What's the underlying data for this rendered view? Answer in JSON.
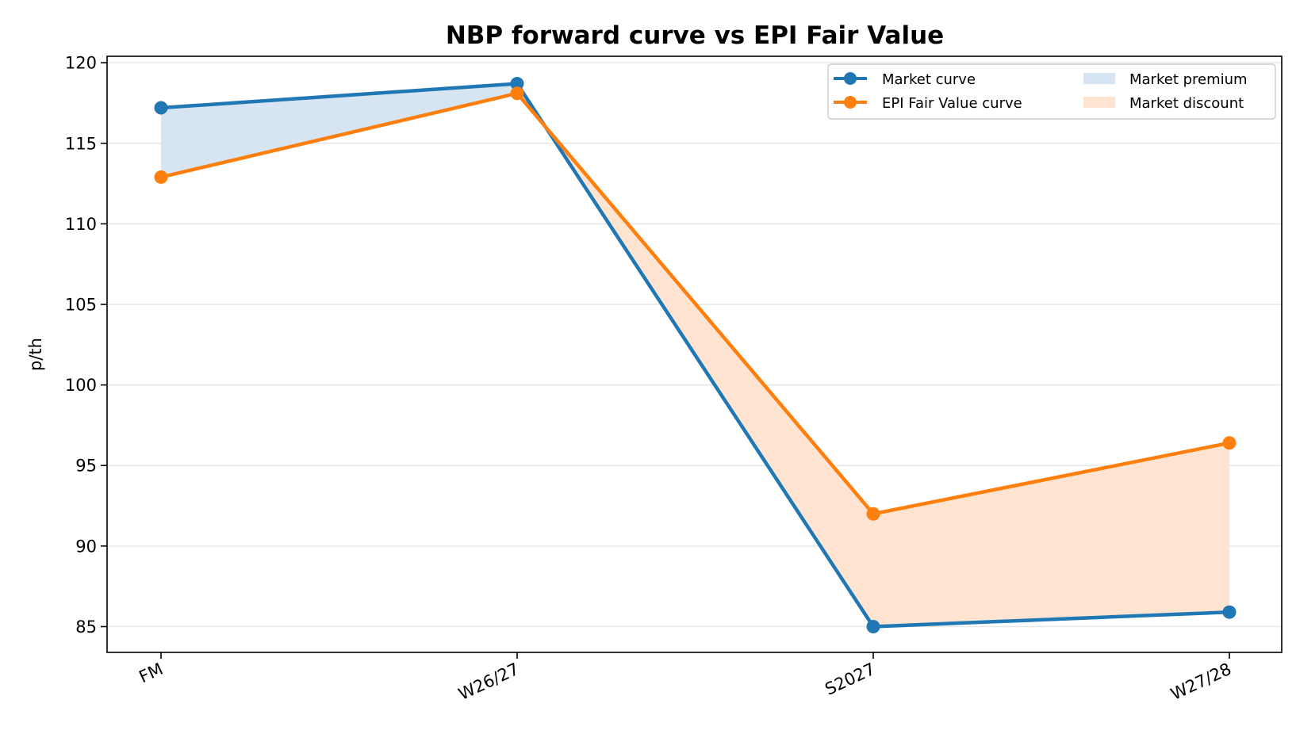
{
  "chart_data": {
    "type": "line",
    "title": "NBP forward curve vs EPI Fair Value",
    "xlabel": "",
    "ylabel": "p/th",
    "categories": [
      "FM",
      "W26/27",
      "S2027",
      "W27/28"
    ],
    "series": [
      {
        "name": "Market curve",
        "values": [
          117.2,
          118.7,
          85.0,
          85.9
        ],
        "color": "#1f77b4"
      },
      {
        "name": "EPI Fair Value curve",
        "values": [
          112.9,
          118.1,
          92.0,
          96.4
        ],
        "color": "#ff7f0e"
      }
    ],
    "fills": [
      {
        "name": "Market premium",
        "color": "#d6e5f1",
        "condition": "market_above"
      },
      {
        "name": "Market discount",
        "color": "#ffe4d2",
        "condition": "market_below"
      }
    ],
    "yticks": [
      85,
      90,
      95,
      100,
      105,
      110,
      115,
      120
    ],
    "ylim": [
      83.4,
      120.4
    ],
    "grid": "horizontal",
    "legend_position": "top-right"
  }
}
